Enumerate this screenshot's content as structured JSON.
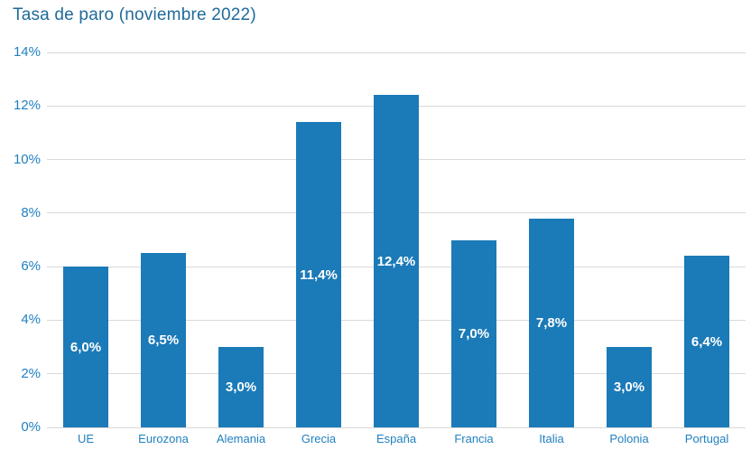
{
  "title": "Tasa de paro (noviembre 2022)",
  "colors": {
    "background": "#ffffff",
    "bar": "#1B7AB8",
    "bar_label": "#ffffff",
    "axis_text": "#2181C0",
    "title_text": "#1F6A9B",
    "gridline": "#D9D9D9"
  },
  "chart_data": {
    "type": "bar",
    "title": "Tasa de paro (noviembre 2022)",
    "categories": [
      "UE",
      "Eurozona",
      "Alemania",
      "Grecia",
      "España",
      "Francia",
      "Italia",
      "Polonia",
      "Portugal"
    ],
    "values": [
      6.0,
      6.5,
      3.0,
      11.4,
      12.4,
      7.0,
      7.8,
      3.0,
      6.4
    ],
    "bar_labels": [
      "6,0%",
      "6,5%",
      "3,0%",
      "11,4%",
      "12,4%",
      "7,0%",
      "7,8%",
      "3,0%",
      "6,4%"
    ],
    "xlabel": "",
    "ylabel": "",
    "ylim": [
      0,
      14
    ],
    "y_ticks": [
      "0%",
      "2%",
      "4%",
      "6%",
      "8%",
      "10%",
      "12%",
      "14%"
    ],
    "y_tick_values": [
      0,
      2,
      4,
      6,
      8,
      10,
      12,
      14
    ],
    "grid": true,
    "legend": false,
    "bar_label_position": "center-inside"
  }
}
